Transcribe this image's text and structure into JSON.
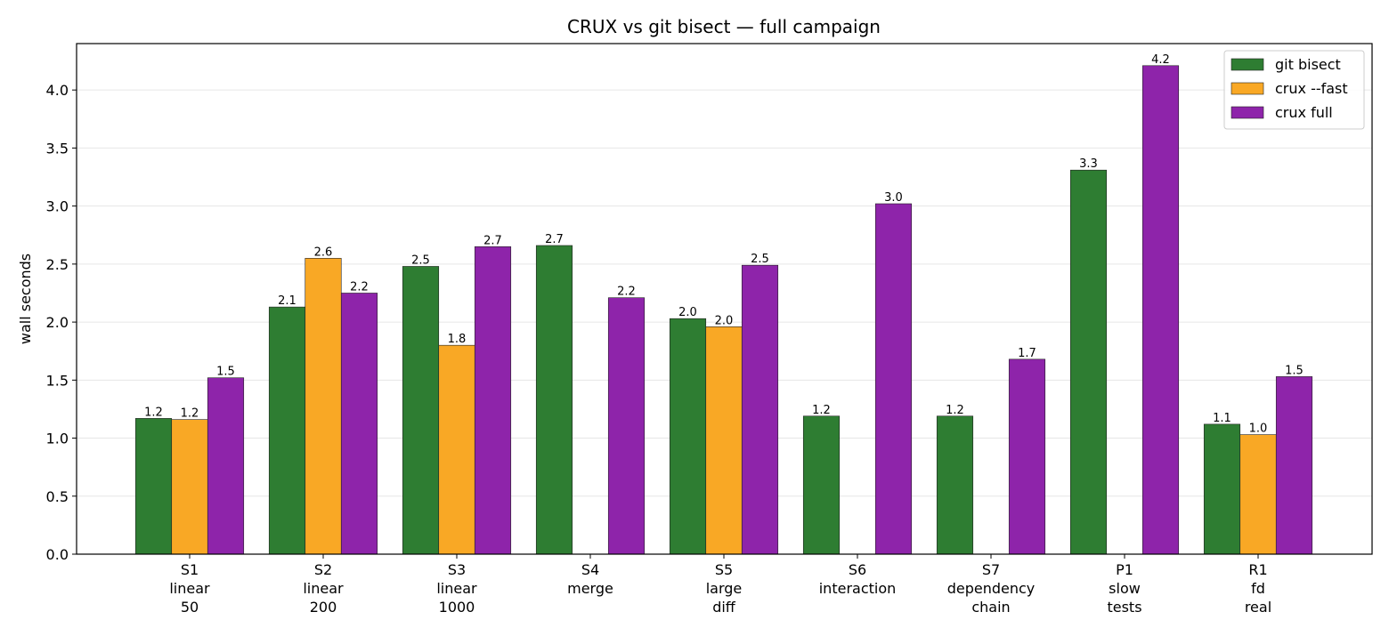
{
  "chart_data": {
    "type": "bar",
    "title": "CRUX vs git bisect — full campaign",
    "xlabel": "",
    "ylabel": "wall seconds",
    "ylim": [
      0,
      4.4
    ],
    "yticks": [
      "0.0",
      "0.5",
      "1.0",
      "1.5",
      "2.0",
      "2.5",
      "3.0",
      "3.5",
      "4.0"
    ],
    "grid": "y",
    "legend_position": "top-right",
    "categories": [
      [
        "S1",
        "linear",
        "50"
      ],
      [
        "S2",
        "linear",
        "200"
      ],
      [
        "S3",
        "linear",
        "1000"
      ],
      [
        "S4",
        "merge"
      ],
      [
        "S5",
        "large",
        "diff"
      ],
      [
        "S6",
        "interaction"
      ],
      [
        "S7",
        "dependency",
        "chain"
      ],
      [
        "P1",
        "slow",
        "tests"
      ],
      [
        "R1",
        "fd",
        "real"
      ]
    ],
    "series": [
      {
        "name": "git bisect",
        "color": "#2e7d32",
        "values": [
          1.17,
          2.13,
          2.48,
          2.66,
          2.03,
          1.19,
          1.19,
          3.31,
          1.12
        ],
        "labels": [
          "1.2",
          "2.1",
          "2.5",
          "2.7",
          "2.0",
          "1.2",
          "1.2",
          "3.3",
          "1.1"
        ]
      },
      {
        "name": "crux --fast",
        "color": "#f9a825",
        "values": [
          1.16,
          2.55,
          1.8,
          null,
          1.96,
          null,
          null,
          null,
          1.03
        ],
        "labels": [
          "1.2",
          "2.6",
          "1.8",
          "",
          "2.0",
          "",
          "",
          "",
          "1.0"
        ]
      },
      {
        "name": "crux full",
        "color": "#8e24aa",
        "values": [
          1.52,
          2.25,
          2.65,
          2.21,
          2.49,
          3.02,
          1.68,
          4.21,
          1.53
        ],
        "labels": [
          "1.5",
          "2.2",
          "2.7",
          "2.2",
          "2.5",
          "3.0",
          "1.7",
          "4.2",
          "1.5"
        ]
      }
    ]
  }
}
